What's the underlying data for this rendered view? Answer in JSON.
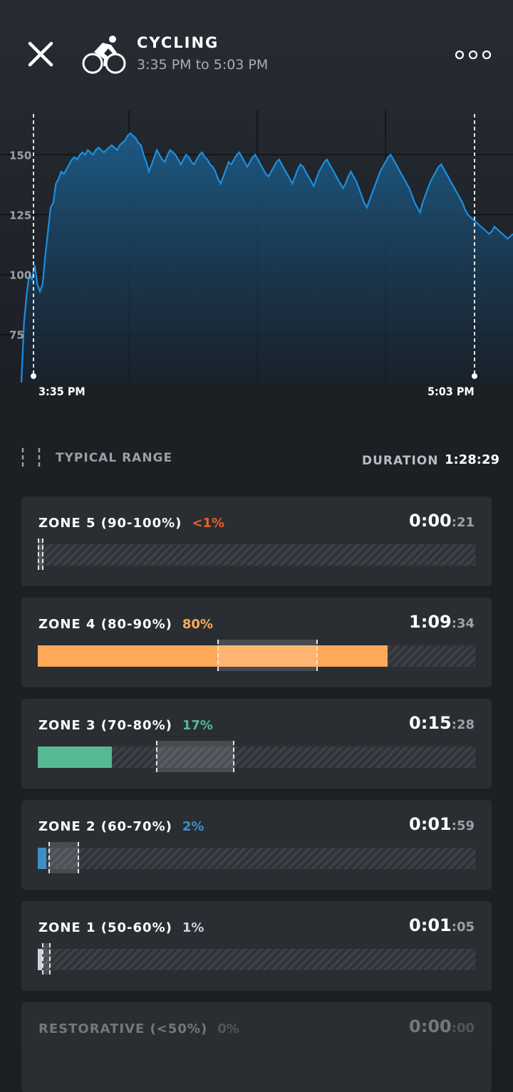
{
  "header": {
    "title": "CYCLING",
    "subtitle": "3:35 PM to 5:03 PM",
    "close_icon": "close-icon",
    "activity_icon": "cycling-icon",
    "more_icon": "more-options-icon"
  },
  "chart_data": {
    "type": "area",
    "ylim": [
      55,
      170
    ],
    "yticks": [
      "150",
      "125",
      "100",
      "75"
    ],
    "start_label": "3:35 PM",
    "end_label": "5:03 PM",
    "color": "#1b8fe0",
    "series": [
      {
        "values": [
          55,
          80,
          92,
          100,
          98,
          104,
          96,
          93,
          96,
          108,
          118,
          128,
          130,
          138,
          140,
          143,
          142,
          144,
          146,
          148,
          149,
          148,
          150,
          151,
          150,
          152,
          151,
          150,
          152,
          153,
          152,
          151,
          152,
          153,
          154,
          153,
          152,
          154,
          155,
          156,
          158,
          159,
          158,
          157,
          155,
          154,
          150,
          147,
          143,
          146,
          149,
          152,
          150,
          148,
          147,
          150,
          152,
          151,
          150,
          148,
          146,
          148,
          150,
          149,
          147,
          146,
          148,
          150,
          151,
          149,
          148,
          146,
          145,
          143,
          140,
          138,
          141,
          144,
          147,
          146,
          148,
          150,
          151,
          149,
          147,
          145,
          147,
          149,
          150,
          148,
          146,
          144,
          142,
          141,
          143,
          145,
          147,
          148,
          146,
          144,
          142,
          140,
          138,
          141,
          144,
          146,
          145,
          143,
          141,
          139,
          137,
          140,
          143,
          145,
          147,
          148,
          146,
          144,
          142,
          140,
          138,
          136,
          138,
          141,
          143,
          141,
          139,
          136,
          133,
          130,
          128,
          131,
          134,
          137,
          140,
          143,
          145,
          147,
          149,
          150,
          148,
          146,
          144,
          142,
          140,
          138,
          136,
          133,
          130,
          128,
          126,
          130,
          133,
          136,
          139,
          141,
          143,
          145,
          146,
          144,
          142,
          140,
          138,
          136,
          134,
          132,
          130,
          127,
          125,
          124,
          123,
          122,
          121,
          120,
          119,
          118,
          117,
          118,
          120,
          119,
          118,
          117,
          116,
          115,
          116,
          117
        ]
      }
    ]
  },
  "legend": {
    "typical_range": "TYPICAL RANGE"
  },
  "duration": {
    "label": "DURATION",
    "value": "1:28:29"
  },
  "zones": [
    {
      "name": "ZONE 5 (90-100%)",
      "pct": "<1%",
      "time_main": "0:00",
      "time_sec": ":21",
      "color": "#e8602c",
      "fill": 0.0,
      "range": [
        0.0,
        0.005
      ]
    },
    {
      "name": "ZONE 4 (80-90%)",
      "pct": "80%",
      "time_main": "1:09",
      "time_sec": ":34",
      "color": "#ffa95a",
      "fill": 0.8,
      "range": [
        0.41,
        0.64
      ]
    },
    {
      "name": "ZONE 3 (70-80%)",
      "pct": "17%",
      "time_main": "0:15",
      "time_sec": ":28",
      "color": "#57b894",
      "fill": 0.17,
      "range": [
        0.27,
        0.45
      ]
    },
    {
      "name": "ZONE 2 (60-70%)",
      "pct": "2%",
      "time_main": "0:01",
      "time_sec": ":59",
      "color": "#3b8fc7",
      "fill": 0.02,
      "range": [
        0.025,
        0.095
      ]
    },
    {
      "name": "ZONE 1 (50-60%)",
      "pct": "1%",
      "time_main": "0:01",
      "time_sec": ":05",
      "color": "#c8d4df",
      "fill": 0.01,
      "range": [
        0.01,
        0.03
      ]
    },
    {
      "name": "RESTORATIVE (<50%)",
      "pct": "0%",
      "time_main": "0:00",
      "time_sec": ":00",
      "color": "#9aa0a6",
      "fill": 0.0,
      "range": [
        0,
        0
      ]
    }
  ]
}
